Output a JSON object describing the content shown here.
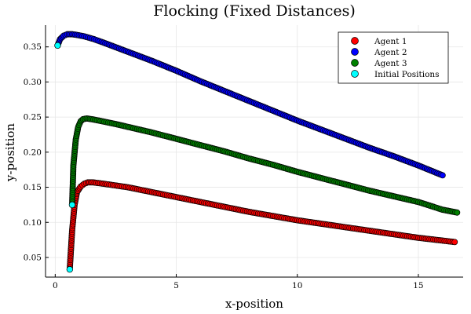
{
  "chart_data": {
    "type": "scatter",
    "title": "Flocking (Fixed Distances)",
    "xlabel": "x-position",
    "ylabel": "y-position",
    "xlim": [
      -0.4,
      16.85
    ],
    "ylim": [
      0.022,
      0.381
    ],
    "xticks": [
      0,
      5,
      10,
      15
    ],
    "xtick_labels": [
      "0",
      "5",
      "10",
      "15"
    ],
    "yticks": [
      0.05,
      0.1,
      0.15,
      0.2,
      0.25,
      0.3,
      0.35
    ],
    "ytick_labels": [
      "0.05",
      "0.10",
      "0.15",
      "0.20",
      "0.25",
      "0.30",
      "0.35"
    ],
    "grid": true,
    "legend_position": "top-right",
    "series": [
      {
        "name": "Agent 1",
        "color": "#ff0000",
        "x": [
          0.6,
          0.7,
          0.8,
          0.9,
          1.05,
          1.2,
          1.35,
          1.55,
          2,
          3,
          4,
          5,
          6,
          7,
          8,
          9,
          10,
          11,
          12,
          13,
          14,
          15,
          16,
          16.5
        ],
        "y": [
          0.033,
          0.089,
          0.125,
          0.143,
          0.151,
          0.155,
          0.157,
          0.157,
          0.155,
          0.15,
          0.143,
          0.136,
          0.129,
          0.122,
          0.115,
          0.109,
          0.103,
          0.098,
          0.093,
          0.088,
          0.083,
          0.078,
          0.074,
          0.072
        ]
      },
      {
        "name": "Agent 2",
        "color": "#0000ff",
        "x": [
          0.1,
          0.2,
          0.35,
          0.5,
          0.7,
          0.9,
          1.2,
          1.6,
          2,
          3,
          4,
          5,
          6,
          7,
          8,
          9,
          10,
          11,
          12,
          13,
          14,
          15,
          16
        ],
        "y": [
          0.352,
          0.361,
          0.366,
          0.368,
          0.368,
          0.367,
          0.365,
          0.361,
          0.356,
          0.343,
          0.33,
          0.316,
          0.301,
          0.287,
          0.273,
          0.259,
          0.245,
          0.232,
          0.219,
          0.206,
          0.194,
          0.181,
          0.167
        ]
      },
      {
        "name": "Agent 3",
        "color": "#008000",
        "x": [
          0.7,
          0.75,
          0.85,
          0.95,
          1.05,
          1.15,
          1.3,
          1.5,
          1.8,
          2.5,
          3,
          4,
          5,
          6,
          7,
          8,
          9,
          10,
          11,
          12,
          13,
          14,
          15,
          16,
          16.6
        ],
        "y": [
          0.125,
          0.181,
          0.218,
          0.236,
          0.244,
          0.247,
          0.248,
          0.247,
          0.245,
          0.24,
          0.236,
          0.228,
          0.219,
          0.21,
          0.201,
          0.191,
          0.182,
          0.172,
          0.163,
          0.154,
          0.145,
          0.137,
          0.129,
          0.118,
          0.114
        ]
      },
      {
        "name": "Initial Positions",
        "color": "#00ffff",
        "x": [
          0.1,
          0.6,
          0.7
        ],
        "y": [
          0.352,
          0.033,
          0.125
        ]
      }
    ]
  }
}
